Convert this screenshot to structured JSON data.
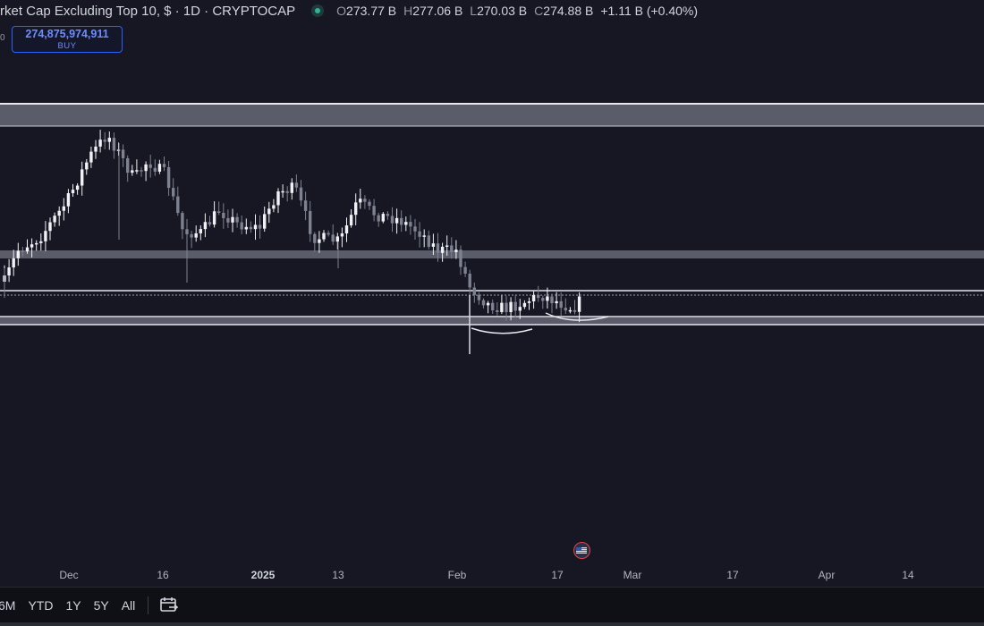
{
  "header": {
    "title": "rket Cap Excluding Top 10, $ · 1D · CRYPTOCAP",
    "status_icon": "green-dot-icon",
    "ohlc": {
      "o_label": "O",
      "o": "273.77 B",
      "h_label": "H",
      "h": "277.06 B",
      "l_label": "L",
      "l": "270.03 B",
      "c_label": "C",
      "c": "274.88 B",
      "change": "+1.11 B (+0.40%)"
    }
  },
  "trade": {
    "price": "274,875,974,911",
    "side": "BUY",
    "edge_value": "0"
  },
  "x_axis": {
    "labels": [
      {
        "text": "Dec"
      },
      {
        "text": "16"
      },
      {
        "text": "2025"
      },
      {
        "text": "13"
      },
      {
        "text": "Feb"
      },
      {
        "text": "17"
      },
      {
        "text": "Mar"
      },
      {
        "text": "17"
      },
      {
        "text": "Apr"
      },
      {
        "text": "14"
      }
    ]
  },
  "flag_icon": "us-flag-icon",
  "bottom_bar": {
    "ranges": [
      "6M",
      "YTD",
      "1Y",
      "5Y",
      "All"
    ],
    "calendar_icon": "calendar-range-icon"
  },
  "colors": {
    "background": "#161722",
    "candle_up": "#f0f1f5",
    "candle_down": "#7d8190",
    "zone": "#5a5d69",
    "accent": "#2962ff"
  }
}
